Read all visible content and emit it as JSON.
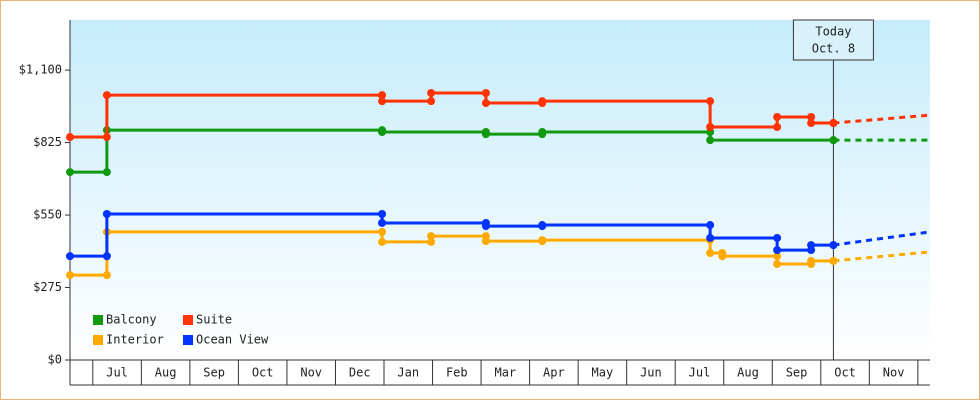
{
  "chart_data": {
    "type": "step",
    "series": [
      {
        "name": "Balcony",
        "color": "#119911",
        "x": [
          -0.47,
          0.29,
          5.96,
          8.1,
          9.26,
          12.72,
          15.26
        ],
        "values": [
          713,
          872,
          865,
          857,
          865,
          834,
          834
        ],
        "forecast": [
          834,
          834
        ]
      },
      {
        "name": "Suite",
        "color": "#ff3300",
        "x": [
          -0.47,
          0.29,
          5.96,
          6.97,
          8.1,
          9.26,
          12.72,
          14.1,
          14.8,
          15.26
        ],
        "values": [
          846,
          1005,
          982,
          1013,
          975,
          982,
          884,
          922,
          899,
          899
        ],
        "forecast": [
          899,
          929
        ]
      },
      {
        "name": "Interior",
        "color": "#ffaa00",
        "x": [
          -0.47,
          0.29,
          5.96,
          6.97,
          8.1,
          9.26,
          12.72,
          12.97,
          14.1,
          14.8,
          15.26
        ],
        "values": [
          322,
          486,
          448,
          470,
          451,
          455,
          406,
          394,
          364,
          376,
          376
        ],
        "forecast": [
          376,
          410
        ]
      },
      {
        "name": "Ocean View",
        "color": "#0033ff",
        "x": [
          -0.47,
          0.29,
          5.96,
          8.1,
          9.26,
          12.72,
          14.1,
          14.8,
          15.26
        ],
        "values": [
          394,
          554,
          520,
          508,
          512,
          463,
          417,
          436,
          436
        ],
        "forecast": [
          436,
          486
        ]
      }
    ],
    "forecast_x": [
      15.26,
      17.25
    ],
    "annotation": {
      "x": 15.26,
      "lines": [
        "Today",
        "Oct. 8"
      ]
    },
    "xlim": [
      -0.47,
      17.25
    ],
    "xticks": [
      {
        "value": 0.5,
        "label": "Jul"
      },
      {
        "value": 1.5,
        "label": "Aug"
      },
      {
        "value": 2.5,
        "label": "Sep"
      },
      {
        "value": 3.5,
        "label": "Oct"
      },
      {
        "value": 4.5,
        "label": "Nov"
      },
      {
        "value": 5.5,
        "label": "Dec"
      },
      {
        "value": 6.5,
        "label": "Jan"
      },
      {
        "value": 7.5,
        "label": "Feb"
      },
      {
        "value": 8.5,
        "label": "Mar"
      },
      {
        "value": 9.5,
        "label": "Apr"
      },
      {
        "value": 10.5,
        "label": "May"
      },
      {
        "value": 11.5,
        "label": "Jun"
      },
      {
        "value": 12.5,
        "label": "Jul"
      },
      {
        "value": 13.5,
        "label": "Aug"
      },
      {
        "value": 14.5,
        "label": "Sep"
      },
      {
        "value": 15.5,
        "label": "Oct"
      },
      {
        "value": 16.5,
        "label": "Nov"
      }
    ],
    "ylim": [
      0,
      1290
    ],
    "yticks": [
      {
        "value": 0,
        "label": "$0"
      },
      {
        "value": 275,
        "label": "$275"
      },
      {
        "value": 550,
        "label": "$550"
      },
      {
        "value": 825,
        "label": "$825"
      },
      {
        "value": 1100,
        "label": "$1,100"
      }
    ],
    "legend": "bottom-left"
  }
}
